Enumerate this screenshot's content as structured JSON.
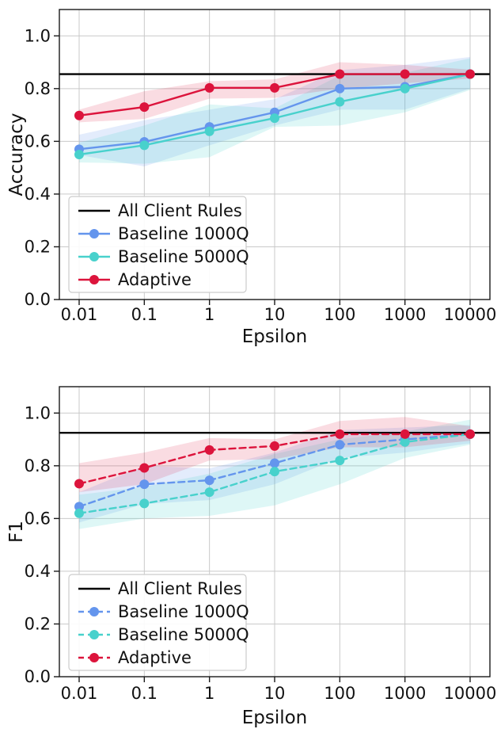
{
  "figure": {
    "background": "#ffffff",
    "grid_color": "#c9c9c9",
    "spine_color": "#1a1a1a",
    "text_color": "#111111"
  },
  "chart_data": [
    {
      "type": "line",
      "name": "accuracy-vs-epsilon",
      "xlabel": "Epsilon",
      "ylabel": "Accuracy",
      "xscale": "log",
      "grid": true,
      "legend_position": "lower left",
      "x": [
        0.01,
        0.1,
        1,
        10,
        100,
        1000,
        10000
      ],
      "xticklabels": [
        "0.01",
        "0.1",
        "1",
        "10",
        "100",
        "1000",
        "10000"
      ],
      "yticks": [
        0.0,
        0.2,
        0.4,
        0.6,
        0.8,
        1.0
      ],
      "yticklabels": [
        "0.0",
        "0.2",
        "0.4",
        "0.6",
        "0.8",
        "1.0"
      ],
      "ylim": [
        0,
        1.1
      ],
      "line_style": "solid",
      "hline": {
        "label": "All Client Rules",
        "value": 0.855,
        "color": "#000000"
      },
      "series": [
        {
          "name": "Baseline 1000Q",
          "color": "#6495ED",
          "band_opacity": 0.18,
          "values": [
            0.57,
            0.598,
            0.655,
            0.71,
            0.8,
            0.807,
            0.855
          ],
          "band_lower": [
            0.548,
            0.505,
            0.585,
            0.66,
            0.72,
            0.72,
            0.8
          ],
          "band_upper": [
            0.625,
            0.68,
            0.72,
            0.76,
            0.87,
            0.89,
            0.92
          ]
        },
        {
          "name": "Baseline 5000Q",
          "color": "#48D1CC",
          "band_opacity": 0.18,
          "values": [
            0.55,
            0.585,
            0.638,
            0.688,
            0.75,
            0.8,
            0.855
          ],
          "band_lower": [
            0.52,
            0.515,
            0.54,
            0.655,
            0.66,
            0.71,
            0.795
          ],
          "band_upper": [
            0.595,
            0.66,
            0.74,
            0.725,
            0.85,
            0.86,
            0.915
          ]
        },
        {
          "name": "Adaptive",
          "color": "#DC143C",
          "band_opacity": 0.15,
          "values": [
            0.698,
            0.73,
            0.803,
            0.803,
            0.855,
            0.855,
            0.855
          ],
          "band_lower": [
            0.672,
            0.685,
            0.762,
            0.765,
            0.8,
            0.82,
            0.838
          ],
          "band_upper": [
            0.72,
            0.79,
            0.828,
            0.835,
            0.9,
            0.89,
            0.872
          ]
        }
      ],
      "legend": [
        "All Client Rules",
        "Baseline 1000Q",
        "Baseline 5000Q",
        "Adaptive"
      ]
    },
    {
      "type": "line",
      "name": "f1-vs-epsilon",
      "xlabel": "Epsilon",
      "ylabel": "F1",
      "xscale": "log",
      "grid": true,
      "legend_position": "lower left",
      "x": [
        0.01,
        0.1,
        1,
        10,
        100,
        1000,
        10000
      ],
      "xticklabels": [
        "0.01",
        "0.1",
        "1",
        "10",
        "100",
        "1000",
        "10000"
      ],
      "yticks": [
        0.0,
        0.2,
        0.4,
        0.6,
        0.8,
        1.0
      ],
      "yticklabels": [
        "0.0",
        "0.2",
        "0.4",
        "0.6",
        "0.8",
        "1.0"
      ],
      "ylim": [
        0,
        1.1
      ],
      "line_style": "dashed",
      "hline": {
        "label": "All Client Rules",
        "value": 0.925,
        "color": "#000000"
      },
      "series": [
        {
          "name": "Baseline 1000Q",
          "color": "#6495ED",
          "band_opacity": 0.18,
          "values": [
            0.645,
            0.73,
            0.745,
            0.81,
            0.88,
            0.9,
            0.92
          ],
          "band_lower": [
            0.585,
            0.655,
            0.67,
            0.73,
            0.83,
            0.85,
            0.885
          ],
          "band_upper": [
            0.7,
            0.8,
            0.79,
            0.85,
            0.935,
            0.945,
            0.955
          ]
        },
        {
          "name": "Baseline 5000Q",
          "color": "#48D1CC",
          "band_opacity": 0.18,
          "values": [
            0.62,
            0.657,
            0.7,
            0.778,
            0.82,
            0.89,
            0.92
          ],
          "band_lower": [
            0.56,
            0.6,
            0.61,
            0.65,
            0.73,
            0.83,
            0.88
          ],
          "band_upper": [
            0.69,
            0.72,
            0.77,
            0.845,
            0.9,
            0.93,
            0.975
          ]
        },
        {
          "name": "Adaptive",
          "color": "#DC143C",
          "band_opacity": 0.15,
          "values": [
            0.732,
            0.792,
            0.86,
            0.875,
            0.92,
            0.92,
            0.92
          ],
          "band_lower": [
            0.7,
            0.73,
            0.82,
            0.825,
            0.87,
            0.87,
            0.895
          ],
          "band_upper": [
            0.81,
            0.85,
            0.905,
            0.9,
            0.97,
            0.985,
            0.95
          ]
        }
      ],
      "legend": [
        "All Client Rules",
        "Baseline 1000Q",
        "Baseline 5000Q",
        "Adaptive"
      ]
    }
  ]
}
